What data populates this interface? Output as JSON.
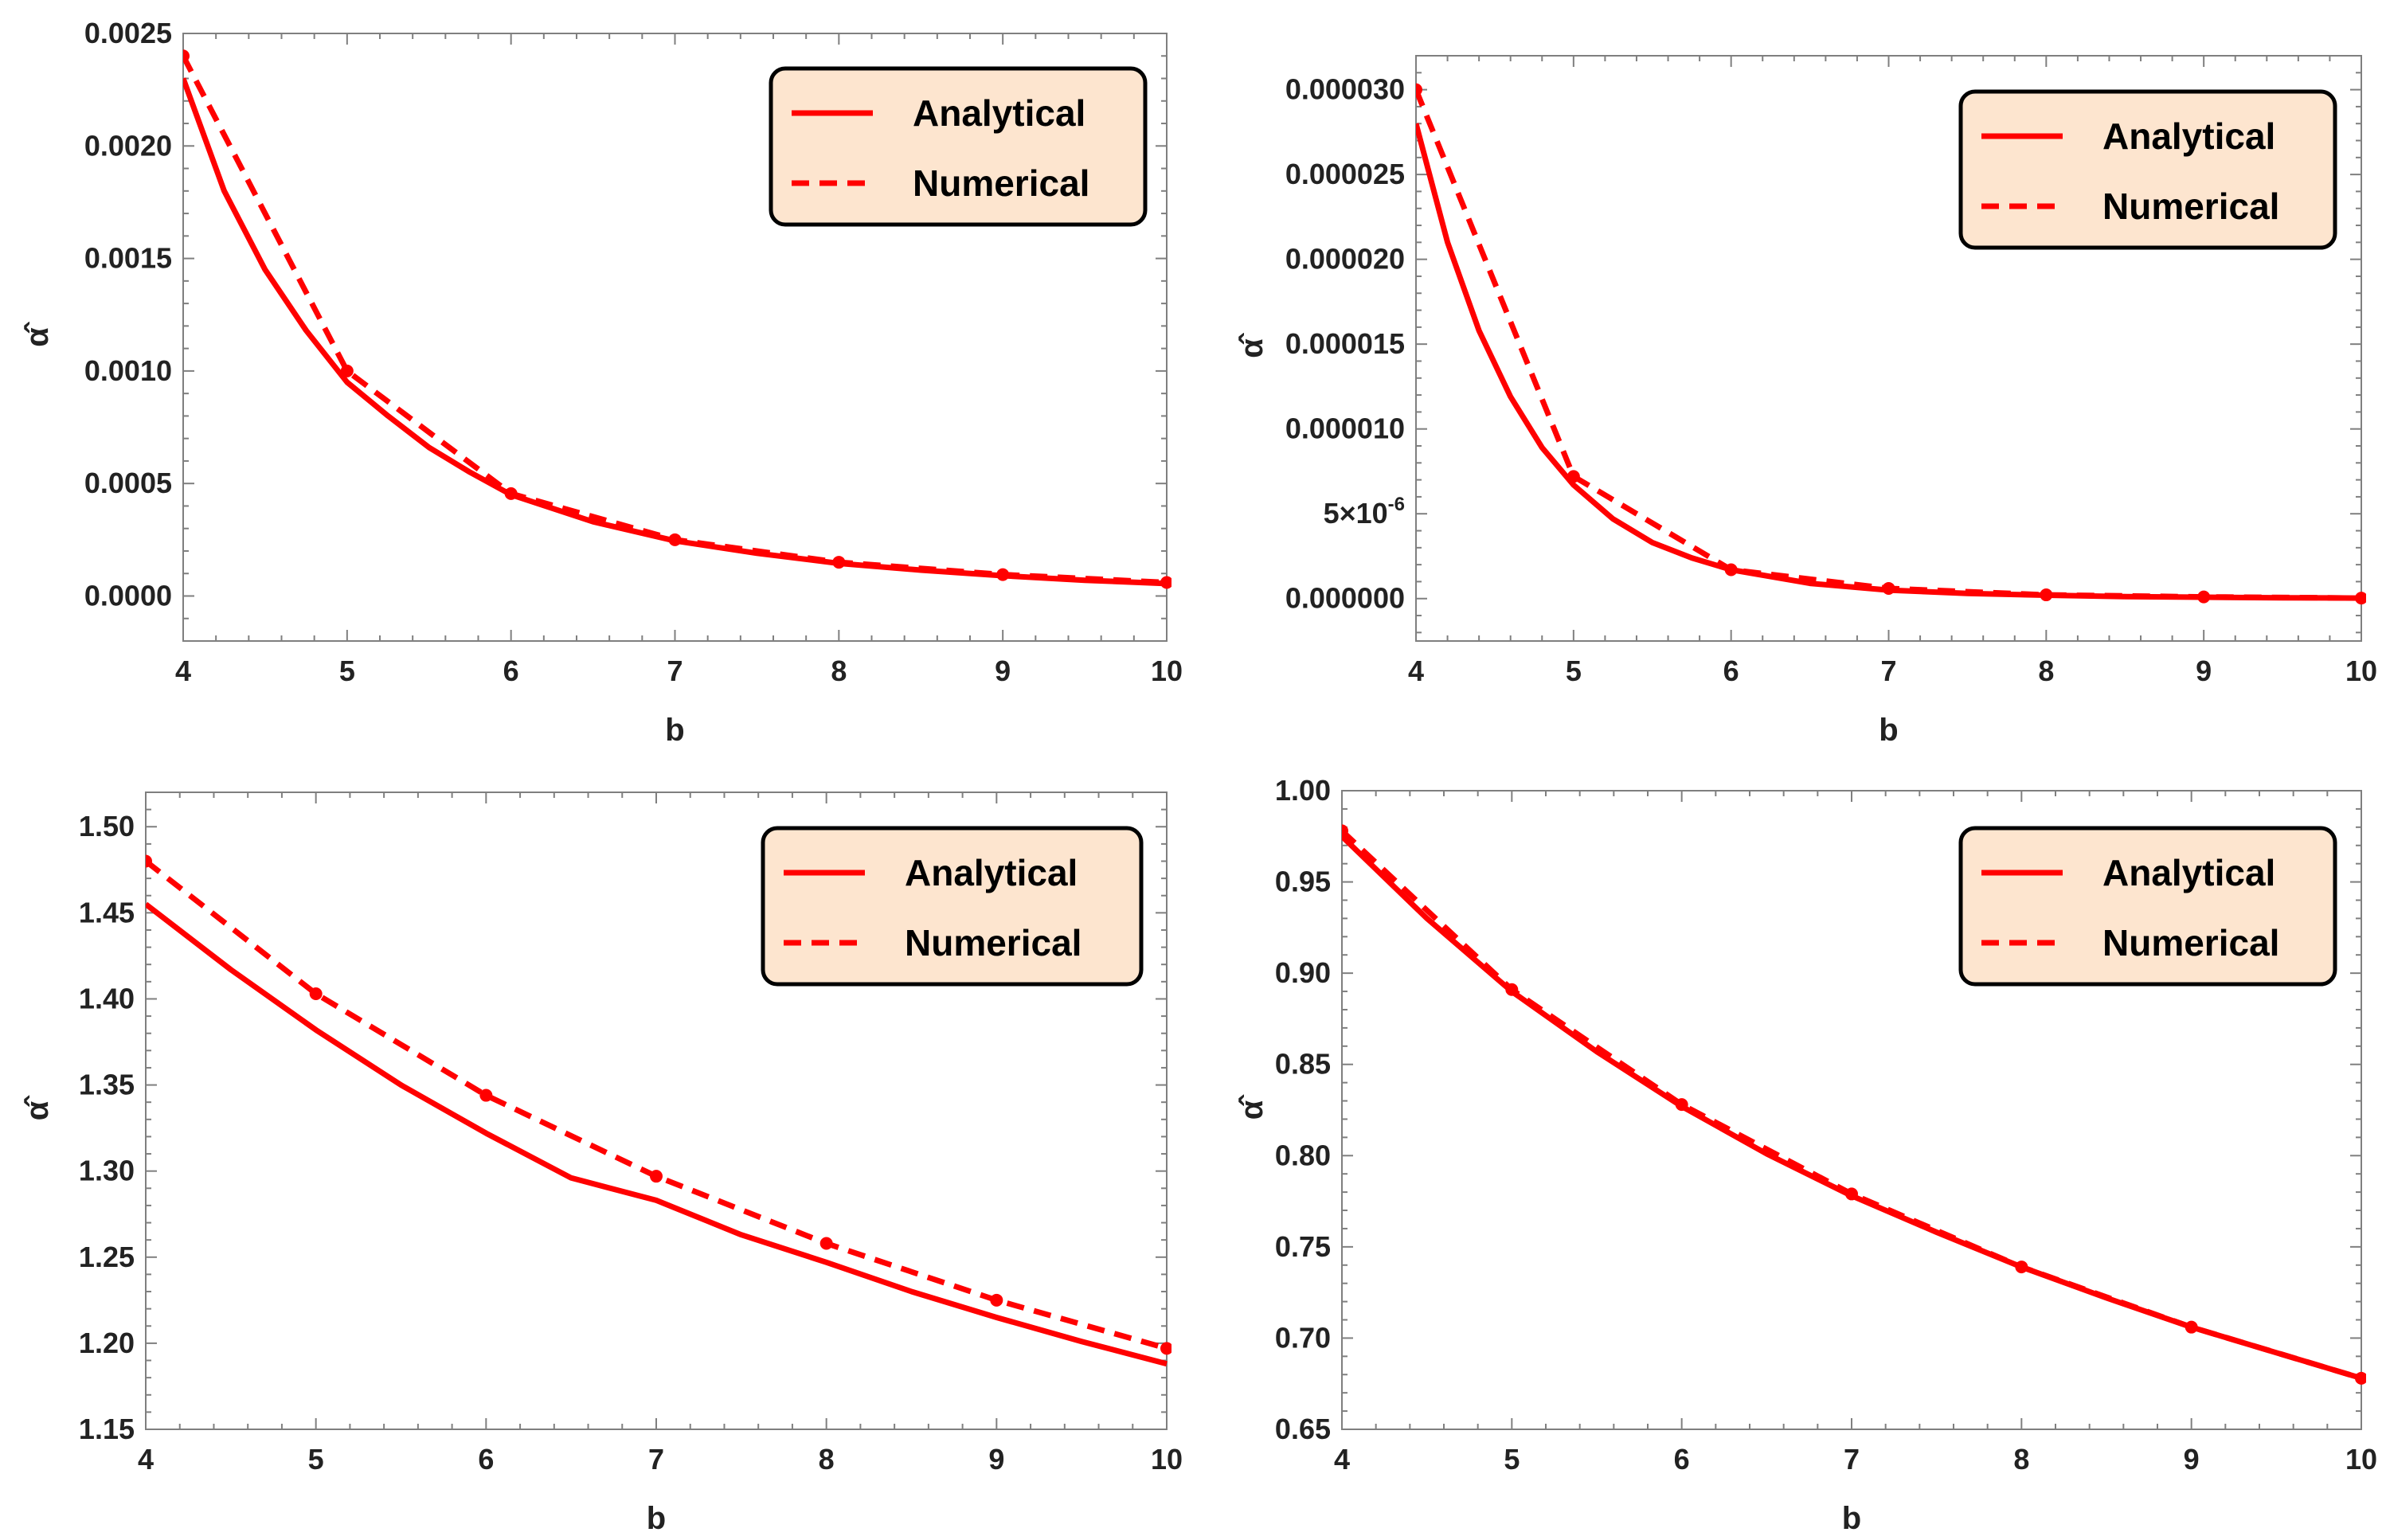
{
  "colors": {
    "series": "#ff0000",
    "legend_bg": "#fde5cf",
    "axis": "#7f7f7f",
    "text": "#222222"
  },
  "chart_data": [
    {
      "type": "line",
      "xlabel": "b",
      "ylabel": "α̂",
      "xlim": [
        4,
        10
      ],
      "ylim": [
        -0.0002,
        0.0025
      ],
      "x_ticks": [
        4,
        5,
        6,
        7,
        8,
        9,
        10
      ],
      "x_tick_labels": [
        "4",
        "5",
        "6",
        "7",
        "8",
        "9",
        "10"
      ],
      "y_ticks": [
        0.0,
        0.0005,
        0.001,
        0.0015,
        0.002,
        0.0025
      ],
      "y_tick_labels": [
        "0.0000",
        "0.0005",
        "0.0010",
        "0.0015",
        "0.0020",
        "0.0025"
      ],
      "legend": {
        "position": "top-right",
        "entries": [
          "Analytical",
          "Numerical"
        ]
      },
      "series": [
        {
          "name": "Analytical",
          "style": "solid",
          "x": [
            4,
            4.25,
            4.5,
            4.75,
            5,
            5.25,
            5.5,
            5.75,
            6,
            6.5,
            7,
            7.5,
            8,
            8.5,
            9,
            9.5,
            10
          ],
          "values": [
            0.0023,
            0.0018,
            0.00145,
            0.00118,
            0.00095,
            0.0008,
            0.00066,
            0.00055,
            0.00045,
            0.00033,
            0.000245,
            0.00019,
            0.000145,
            0.000115,
            9e-05,
            7e-05,
            5.5e-05
          ]
        },
        {
          "name": "Numerical",
          "style": "dashed",
          "markers": true,
          "x": [
            4,
            5,
            6,
            7,
            8,
            9,
            10
          ],
          "values": [
            0.0024,
            0.001,
            0.000455,
            0.00025,
            0.00015,
            9.5e-05,
            6e-05
          ]
        }
      ]
    },
    {
      "type": "line",
      "xlabel": "b",
      "ylabel": "α̂",
      "xlim": [
        4,
        10
      ],
      "ylim": [
        -2.5e-06,
        3.2e-05
      ],
      "x_ticks": [
        4,
        5,
        6,
        7,
        8,
        9,
        10
      ],
      "x_tick_labels": [
        "4",
        "5",
        "6",
        "7",
        "8",
        "9",
        "10"
      ],
      "y_ticks": [
        0.0,
        5e-06,
        1e-05,
        1.5e-05,
        2e-05,
        2.5e-05,
        3e-05
      ],
      "y_tick_labels": [
        "0.000000",
        "5×10",
        "0.000010",
        "0.000015",
        "0.000020",
        "0.000025",
        "0.000030"
      ],
      "y_tick_exponent": "-6",
      "legend": {
        "position": "top-right",
        "entries": [
          "Analytical",
          "Numerical"
        ]
      },
      "series": [
        {
          "name": "Analytical",
          "style": "solid",
          "x": [
            4,
            4.2,
            4.4,
            4.6,
            4.8,
            5,
            5.25,
            5.5,
            5.75,
            6,
            6.5,
            7,
            7.5,
            8,
            8.5,
            9,
            9.5,
            10
          ],
          "values": [
            2.8e-05,
            2.1e-05,
            1.58e-05,
            1.19e-05,
            8.9e-06,
            6.7e-06,
            4.7e-06,
            3.3e-06,
            2.4e-06,
            1.7e-06,
            9e-07,
            5e-07,
            3e-07,
            2e-07,
            1.2e-07,
            8e-08,
            5e-08,
            3e-08
          ]
        },
        {
          "name": "Numerical",
          "style": "dashed",
          "markers": true,
          "x": [
            4,
            5,
            6,
            7,
            8,
            9,
            10
          ],
          "values": [
            3e-05,
            7.2e-06,
            1.7e-06,
            6e-07,
            2.2e-07,
            1e-07,
            3e-08
          ]
        }
      ]
    },
    {
      "type": "line",
      "xlabel": "b",
      "ylabel": "α̂",
      "xlim": [
        4,
        10
      ],
      "ylim": [
        1.15,
        1.52
      ],
      "x_ticks": [
        4,
        5,
        6,
        7,
        8,
        9,
        10
      ],
      "x_tick_labels": [
        "4",
        "5",
        "6",
        "7",
        "8",
        "9",
        "10"
      ],
      "y_ticks": [
        1.15,
        1.2,
        1.25,
        1.3,
        1.35,
        1.4,
        1.45,
        1.5
      ],
      "y_tick_labels": [
        "1.15",
        "1.20",
        "1.25",
        "1.30",
        "1.35",
        "1.40",
        "1.45",
        "1.50"
      ],
      "legend": {
        "position": "top-right",
        "entries": [
          "Analytical",
          "Numerical"
        ]
      },
      "series": [
        {
          "name": "Analytical",
          "style": "solid",
          "x": [
            4,
            4.5,
            5,
            5.5,
            6,
            6.5,
            7,
            7.5,
            8,
            8.5,
            9,
            9.5,
            10
          ],
          "values": [
            1.455,
            1.417,
            1.382,
            1.35,
            1.322,
            1.296,
            1.283,
            1.263,
            1.247,
            1.23,
            1.215,
            1.201,
            1.188
          ]
        },
        {
          "name": "Numerical",
          "style": "dashed",
          "markers": true,
          "x": [
            4,
            5,
            6,
            7,
            8,
            9,
            10
          ],
          "values": [
            1.48,
            1.403,
            1.344,
            1.297,
            1.258,
            1.225,
            1.197
          ]
        }
      ]
    },
    {
      "type": "line",
      "xlabel": "b",
      "ylabel": "α̂",
      "xlim": [
        4,
        10
      ],
      "ylim": [
        0.65,
        1.0
      ],
      "x_ticks": [
        4,
        5,
        6,
        7,
        8,
        9,
        10
      ],
      "x_tick_labels": [
        "4",
        "5",
        "6",
        "7",
        "8",
        "9",
        "10"
      ],
      "y_ticks": [
        0.65,
        0.7,
        0.75,
        0.8,
        0.85,
        0.9,
        0.95,
        1.0
      ],
      "y_tick_labels": [
        "0.65",
        "0.70",
        "0.75",
        "0.80",
        "0.85",
        "0.90",
        "0.95",
        "1.00"
      ],
      "legend": {
        "position": "top-right",
        "entries": [
          "Analytical",
          "Numerical"
        ]
      },
      "series": [
        {
          "name": "Analytical",
          "style": "solid",
          "x": [
            4,
            4.5,
            5,
            5.5,
            6,
            6.5,
            7,
            7.5,
            8,
            8.5,
            9,
            9.5,
            10
          ],
          "values": [
            0.975,
            0.93,
            0.89,
            0.857,
            0.827,
            0.801,
            0.778,
            0.758,
            0.739,
            0.722,
            0.706,
            0.692,
            0.678
          ]
        },
        {
          "name": "Numerical",
          "style": "dashed",
          "markers": true,
          "x": [
            4,
            5,
            6,
            7,
            8,
            9,
            10
          ],
          "values": [
            0.978,
            0.891,
            0.828,
            0.779,
            0.739,
            0.706,
            0.678
          ]
        }
      ]
    }
  ]
}
